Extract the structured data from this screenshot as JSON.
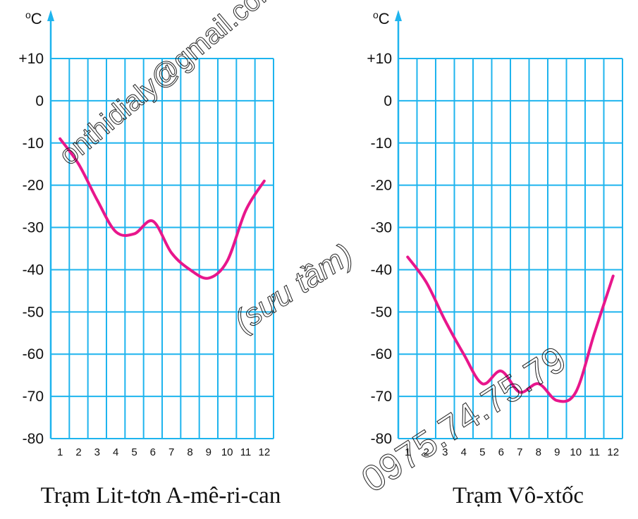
{
  "colors": {
    "grid": "#1eb4ee",
    "line": "#e8168c",
    "axis_arrow": "#1eb4ee"
  },
  "watermarks": {
    "email": "onthidialy@gmail.com",
    "note": "(sưu tầm)",
    "phone": "0975.74.75.79"
  },
  "chart_data": [
    {
      "type": "line",
      "title": "Trạm Lit-tơn A-mê-ri-can",
      "unit_label": {
        "sup": "o",
        "text": "C"
      },
      "xlabel": "",
      "ylabel": "°C",
      "categories": [
        "1",
        "2",
        "3",
        "4",
        "5",
        "6",
        "7",
        "8",
        "9",
        "10",
        "11",
        "12"
      ],
      "yticks": [
        "+10",
        "0",
        "-10",
        "-20",
        "-30",
        "-40",
        "-50",
        "-60",
        "-70",
        "-80"
      ],
      "ylim": [
        -80,
        10
      ],
      "grid": true,
      "values": [
        -9,
        -15,
        -23.5,
        -31,
        -31.5,
        -28.5,
        -36,
        -40,
        -42,
        -38,
        -26,
        -19
      ]
    },
    {
      "type": "line",
      "title": "Trạm Vô-xtốc",
      "unit_label": {
        "sup": "o",
        "text": "C"
      },
      "xlabel": "",
      "ylabel": "°C",
      "categories": [
        "1",
        "2",
        "3",
        "4",
        "5",
        "6",
        "7",
        "8",
        "9",
        "10",
        "11",
        "12"
      ],
      "yticks": [
        "+10",
        "0",
        "-10",
        "-20",
        "-30",
        "-40",
        "-50",
        "-60",
        "-70",
        "-80"
      ],
      "ylim": [
        -80,
        10
      ],
      "grid": true,
      "values": [
        -37,
        -43,
        -52,
        -60,
        -67,
        -64,
        -69,
        -67,
        -71,
        -69,
        -55,
        -41.5
      ]
    }
  ]
}
